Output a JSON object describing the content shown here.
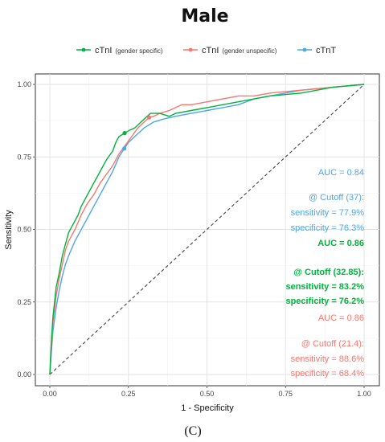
{
  "chart_data": {
    "type": "line",
    "title": "Male",
    "xlabel": "1 - Specificity",
    "ylabel": "Sensitivity",
    "panel_label": "(C)",
    "xlim": [
      0,
      1
    ],
    "ylim": [
      0,
      1
    ],
    "x_ticks": [
      "0.00",
      "0.25",
      "0.50",
      "0.75",
      "1.00"
    ],
    "y_ticks": [
      "0.00",
      "0.25",
      "0.50",
      "0.75",
      "1.00"
    ],
    "grid": true,
    "legend_position": "top",
    "legend": [
      {
        "main": "cTnI",
        "sub": "(gender specific)",
        "color": "#00b33c"
      },
      {
        "main": "cTnI",
        "sub": "(gender unspecific)",
        "color": "#f8766d"
      },
      {
        "main": "cTnT",
        "sub": "",
        "color": "#4da6e8"
      }
    ],
    "series": [
      {
        "color": "#00b33c",
        "x": [
          0,
          0.005,
          0.01,
          0.015,
          0.02,
          0.03,
          0.04,
          0.05,
          0.06,
          0.07,
          0.08,
          0.09,
          0.1,
          0.11,
          0.12,
          0.13,
          0.14,
          0.15,
          0.16,
          0.17,
          0.18,
          0.19,
          0.2,
          0.21,
          0.22,
          0.238,
          0.25,
          0.27,
          0.29,
          0.3,
          0.32,
          0.35,
          0.38,
          0.4,
          0.45,
          0.5,
          0.55,
          0.6,
          0.65,
          0.7,
          0.8,
          0.9,
          1.0
        ],
        "y": [
          0,
          0.12,
          0.2,
          0.25,
          0.3,
          0.35,
          0.41,
          0.45,
          0.49,
          0.51,
          0.53,
          0.55,
          0.58,
          0.6,
          0.62,
          0.64,
          0.66,
          0.68,
          0.7,
          0.72,
          0.74,
          0.755,
          0.77,
          0.8,
          0.82,
          0.832,
          0.84,
          0.85,
          0.87,
          0.88,
          0.9,
          0.9,
          0.89,
          0.9,
          0.91,
          0.92,
          0.93,
          0.94,
          0.95,
          0.96,
          0.97,
          0.99,
          1.0
        ]
      },
      {
        "color": "#f8766d",
        "x": [
          0,
          0.005,
          0.01,
          0.02,
          0.03,
          0.04,
          0.05,
          0.06,
          0.08,
          0.1,
          0.12,
          0.14,
          0.16,
          0.18,
          0.2,
          0.22,
          0.24,
          0.26,
          0.28,
          0.3,
          0.316,
          0.33,
          0.35,
          0.38,
          0.4,
          0.42,
          0.45,
          0.5,
          0.55,
          0.6,
          0.65,
          0.7,
          0.8,
          0.9,
          1.0
        ],
        "y": [
          0,
          0.1,
          0.18,
          0.27,
          0.33,
          0.38,
          0.43,
          0.46,
          0.5,
          0.55,
          0.59,
          0.62,
          0.66,
          0.69,
          0.72,
          0.76,
          0.79,
          0.82,
          0.85,
          0.87,
          0.886,
          0.89,
          0.9,
          0.91,
          0.92,
          0.93,
          0.93,
          0.94,
          0.95,
          0.96,
          0.96,
          0.97,
          0.98,
          0.99,
          1.0
        ]
      },
      {
        "color": "#4da6e8",
        "x": [
          0,
          0.005,
          0.01,
          0.02,
          0.03,
          0.04,
          0.05,
          0.06,
          0.08,
          0.1,
          0.12,
          0.14,
          0.16,
          0.18,
          0.2,
          0.22,
          0.237,
          0.25,
          0.28,
          0.3,
          0.33,
          0.36,
          0.4,
          0.45,
          0.5,
          0.55,
          0.6,
          0.65,
          0.7,
          0.8,
          0.9,
          1.0
        ],
        "y": [
          0,
          0.08,
          0.15,
          0.23,
          0.29,
          0.34,
          0.38,
          0.41,
          0.46,
          0.5,
          0.54,
          0.58,
          0.62,
          0.66,
          0.7,
          0.75,
          0.779,
          0.8,
          0.83,
          0.85,
          0.87,
          0.88,
          0.89,
          0.9,
          0.91,
          0.92,
          0.93,
          0.95,
          0.96,
          0.98,
          0.99,
          1.0
        ]
      }
    ],
    "cutoff_points": [
      {
        "x": 0.238,
        "y": 0.832,
        "color": "#00b33c"
      },
      {
        "x": 0.316,
        "y": 0.886,
        "color": "#f8766d"
      },
      {
        "x": 0.237,
        "y": 0.779,
        "color": "#4da6e8"
      }
    ],
    "annotations": [
      {
        "text": "AUC = 0.84",
        "color": "#4da6e8",
        "bold": false
      },
      {
        "text": "@ Cutoff (37):",
        "color": "#4da6e8",
        "bold": false
      },
      {
        "text": "sensitivity = 77.9%",
        "color": "#4da6e8",
        "bold": false
      },
      {
        "text": "specificity = 76.3%",
        "color": "#4da6e8",
        "bold": false
      },
      {
        "text": "AUC = 0.86",
        "color": "#00b33c",
        "bold": true
      },
      {
        "text": "@ Cutoff (32.85):",
        "color": "#00b33c",
        "bold": true
      },
      {
        "text": "sensitivity = 83.2%",
        "color": "#00b33c",
        "bold": true
      },
      {
        "text": "specificity = 76.2%",
        "color": "#00b33c",
        "bold": true
      },
      {
        "text": "AUC = 0.86",
        "color": "#f8766d",
        "bold": false
      },
      {
        "text": "@ Cutoff (21.4):",
        "color": "#f8766d",
        "bold": false
      },
      {
        "text": "sensitivity = 88.6%",
        "color": "#f8766d",
        "bold": false
      },
      {
        "text": "specificity = 68.4%",
        "color": "#f8766d",
        "bold": false
      }
    ]
  }
}
